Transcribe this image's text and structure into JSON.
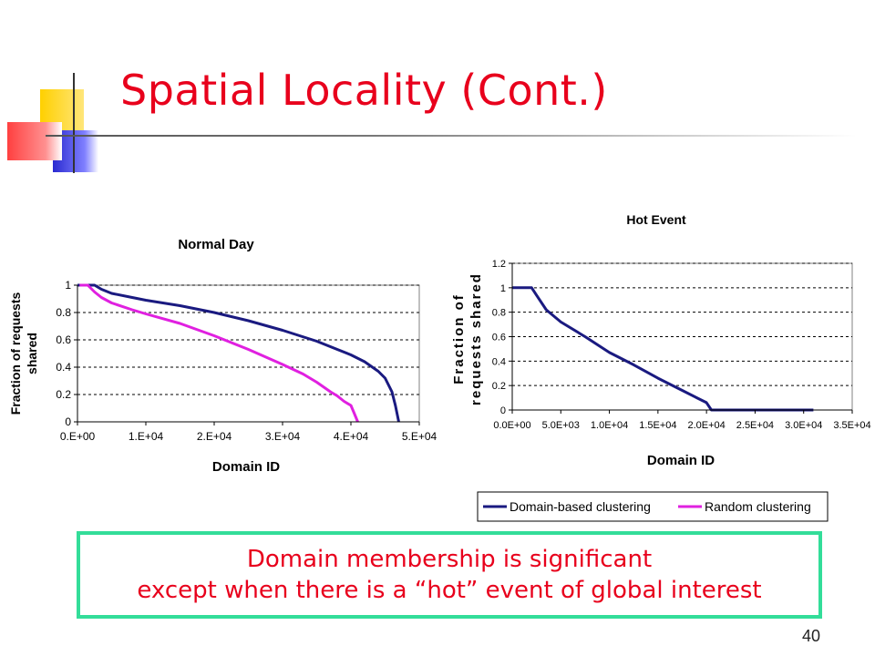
{
  "slide": {
    "title": "Spatial Locality (Cont.)",
    "callout_line1": "Domain membership is significant",
    "callout_line2": "except when there is a “hot” event of global interest",
    "page_number": "40"
  },
  "colors": {
    "title": "#e8001c",
    "domain_series": "#1a1a80",
    "random_series": "#e020e0",
    "callout_border": "#33dd99"
  },
  "chart_data": [
    {
      "type": "line",
      "title": "Normal Day",
      "xlabel": "Domain ID",
      "ylabel": "Fraction of requests shared",
      "xlim": [
        0,
        50000
      ],
      "ylim": [
        0,
        1
      ],
      "x_ticks": [
        "0.E+00",
        "1.E+04",
        "2.E+04",
        "3.E+04",
        "4.E+04",
        "5.E+04"
      ],
      "y_ticks": [
        "0",
        "0.2",
        "0.4",
        "0.6",
        "0.8",
        "1"
      ],
      "grid": "horizontal dashed",
      "series": [
        {
          "name": "Domain-based clustering",
          "x": [
            0,
            2500,
            3500,
            5000,
            8000,
            10000,
            15000,
            20000,
            25000,
            30000,
            35000,
            38000,
            40000,
            42000,
            44000,
            45000,
            46000,
            46500,
            47000
          ],
          "y": [
            1.0,
            1.0,
            0.97,
            0.94,
            0.91,
            0.89,
            0.85,
            0.8,
            0.74,
            0.67,
            0.59,
            0.53,
            0.49,
            0.44,
            0.37,
            0.32,
            0.22,
            0.12,
            0.0
          ]
        },
        {
          "name": "Random clustering",
          "x": [
            300,
            1500,
            2500,
            3500,
            5000,
            8000,
            10000,
            15000,
            20000,
            25000,
            30000,
            33000,
            35000,
            37000,
            38000,
            39000,
            40000,
            40500,
            41000
          ],
          "y": [
            1.0,
            1.0,
            0.95,
            0.91,
            0.87,
            0.82,
            0.79,
            0.72,
            0.63,
            0.53,
            0.42,
            0.35,
            0.29,
            0.22,
            0.19,
            0.15,
            0.12,
            0.06,
            0.0
          ]
        }
      ]
    },
    {
      "type": "line",
      "title": "Hot Event",
      "xlabel": "Domain ID",
      "ylabel": "Fraction of requests shared",
      "xlim": [
        0,
        35000
      ],
      "ylim": [
        0,
        1.2
      ],
      "x_ticks": [
        "0.0E+00",
        "5.0E+03",
        "1.0E+04",
        "1.5E+04",
        "2.0E+04",
        "2.5E+04",
        "3.0E+04",
        "3.5E+04"
      ],
      "y_ticks": [
        "0",
        "0.2",
        "0.4",
        "0.6",
        "0.8",
        "1",
        "1.2"
      ],
      "grid": "horizontal dashed",
      "series": [
        {
          "name": "Domain-based clustering",
          "x": [
            0,
            2000,
            2500,
            3500,
            5000,
            7500,
            10000,
            12500,
            15000,
            17500,
            19000,
            20000,
            20500,
            22000,
            25000,
            30000,
            31000
          ],
          "y": [
            1.0,
            1.0,
            0.94,
            0.82,
            0.72,
            0.6,
            0.47,
            0.37,
            0.26,
            0.16,
            0.1,
            0.06,
            0.0,
            0.0,
            0.0,
            0.0,
            0.0
          ]
        }
      ]
    }
  ],
  "legend": {
    "items": [
      "Domain-based clustering",
      "Random clustering"
    ]
  }
}
